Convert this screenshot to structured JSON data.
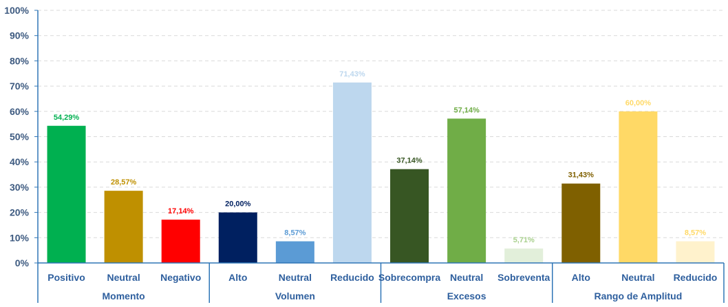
{
  "chart_data": {
    "type": "bar",
    "ylim": [
      0,
      100
    ],
    "y_ticks": [
      "0%",
      "10%",
      "20%",
      "30%",
      "40%",
      "50%",
      "60%",
      "70%",
      "80%",
      "90%",
      "100%"
    ],
    "grid": "horizontal dashed",
    "groups": [
      {
        "name": "Momento",
        "bars": [
          {
            "category": "Positivo",
            "value": 54.29,
            "label": "54,29%",
            "color": "#00b050"
          },
          {
            "category": "Neutral",
            "value": 28.57,
            "label": "28,57%",
            "color": "#bf9000"
          },
          {
            "category": "Negativo",
            "value": 17.14,
            "label": "17,14%",
            "color": "#ff0000"
          }
        ]
      },
      {
        "name": "Volumen",
        "bars": [
          {
            "category": "Alto",
            "value": 20.0,
            "label": "20,00%",
            "color": "#002060"
          },
          {
            "category": "Neutral",
            "value": 8.57,
            "label": "8,57%",
            "color": "#5b9bd5"
          },
          {
            "category": "Reducido",
            "value": 71.43,
            "label": "71,43%",
            "color": "#bdd7ee"
          }
        ]
      },
      {
        "name": "Excesos",
        "bars": [
          {
            "category": "Sobrecompra",
            "value": 37.14,
            "label": "37,14%",
            "color": "#375623"
          },
          {
            "category": "Neutral",
            "value": 57.14,
            "label": "57,14%",
            "color": "#70ad47"
          },
          {
            "category": "Sobreventa",
            "value": 5.71,
            "label": "5,71%",
            "color": "#e2efda"
          }
        ]
      },
      {
        "name": "Rango de Amplitud",
        "bars": [
          {
            "category": "Alto",
            "value": 31.43,
            "label": "31,43%",
            "color": "#7f6000"
          },
          {
            "category": "Neutral",
            "value": 60.0,
            "label": "60,00%",
            "color": "#ffd966"
          },
          {
            "category": "Reducido",
            "value": 8.57,
            "label": "8,57%",
            "color": "#fff2cc"
          }
        ]
      }
    ]
  },
  "colors": {
    "axis": "#2e75b6",
    "tick_text": "#3d5a80",
    "category_text": "#2e5f9e",
    "grid": "#d9d9d9",
    "label_overrides": {
      "#e2efda": "#a9d08e",
      "#fff2cc": "#ffd966"
    }
  }
}
